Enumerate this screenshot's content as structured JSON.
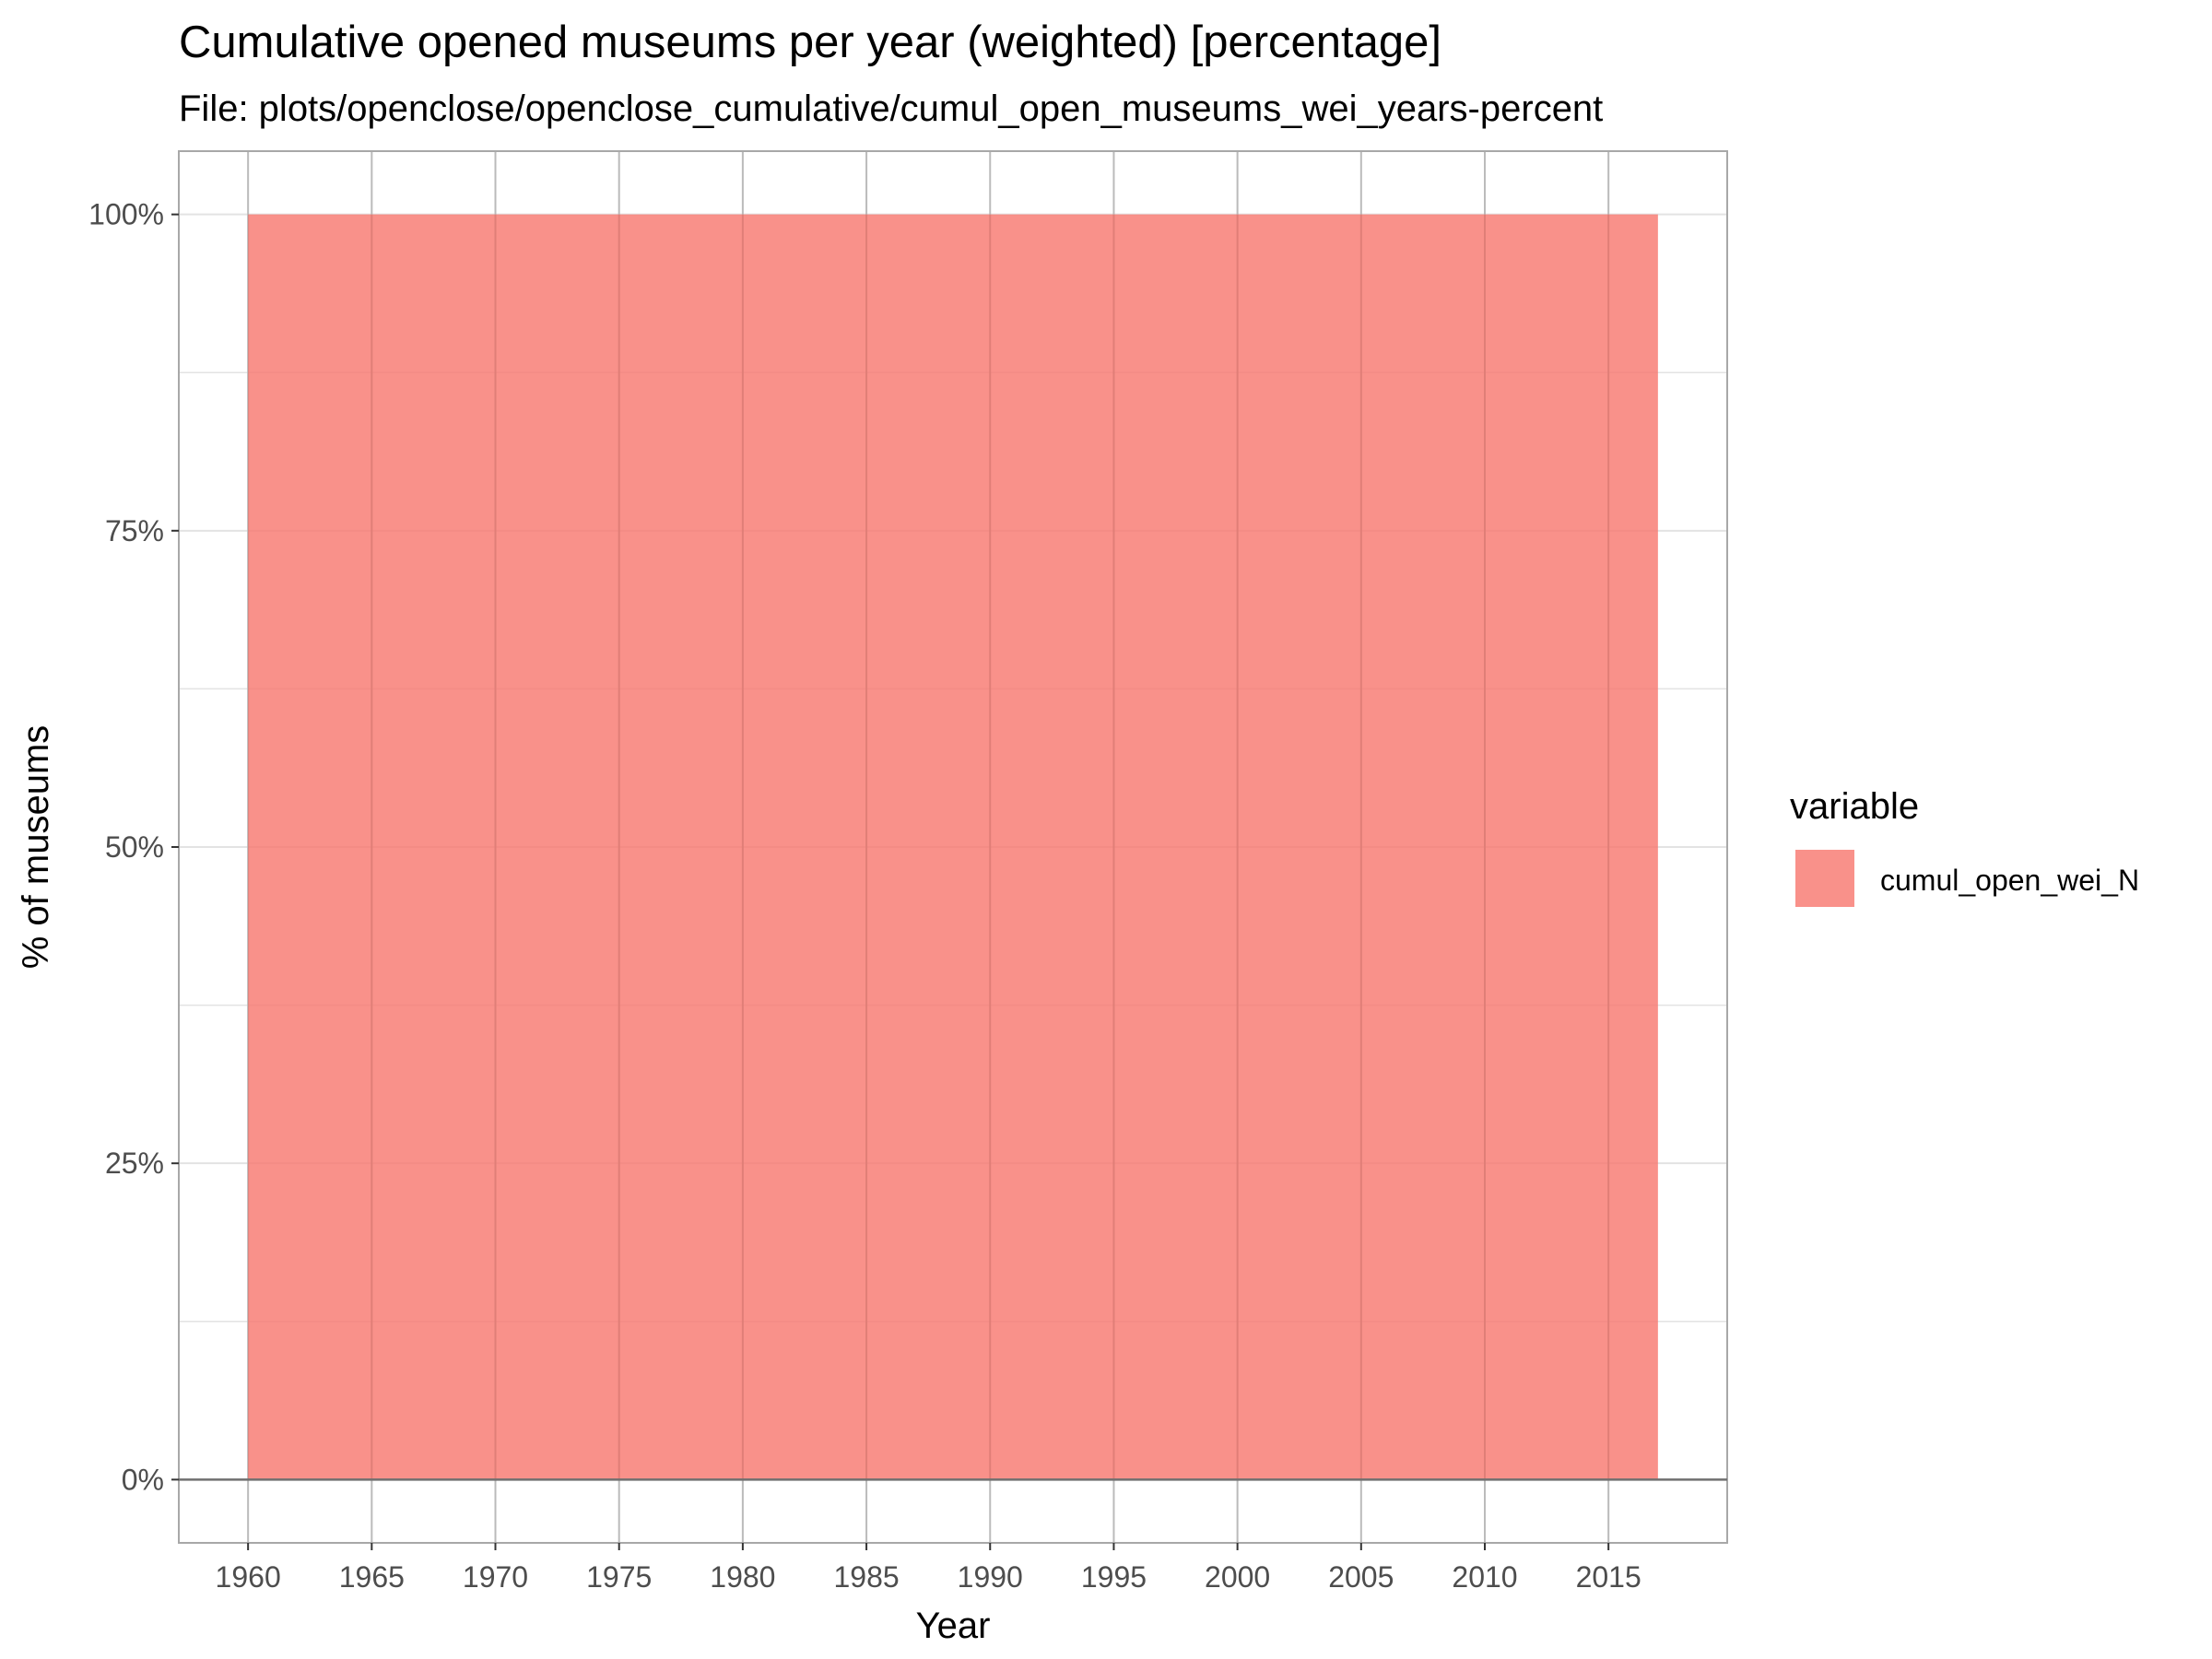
{
  "chart_data": {
    "type": "area",
    "title": "Cumulative opened museums per year (weighted) [percentage]",
    "subtitle": "File: plots/openclose/openclose_cumulative/cumul_open_museums_wei_years-percent",
    "xlabel": "Year",
    "ylabel": "% of museums",
    "x": [
      1960,
      2017
    ],
    "series": [
      {
        "name": "cumul_open_wei_N",
        "values": [
          100,
          100
        ],
        "color": "#f8766d"
      }
    ],
    "xlim": [
      1957.2,
      2019.8
    ],
    "ylim": [
      -5,
      105
    ],
    "xticks": [
      1960,
      1965,
      1970,
      1975,
      1980,
      1985,
      1990,
      1995,
      2000,
      2005,
      2010,
      2015
    ],
    "xtick_labels": [
      "1960",
      "1965",
      "1970",
      "1975",
      "1980",
      "1985",
      "1990",
      "1995",
      "2000",
      "2005",
      "2010",
      "2015"
    ],
    "yticks": [
      0,
      25,
      50,
      75,
      100
    ],
    "ytick_labels": [
      "0%",
      "25%",
      "50%",
      "75%",
      "100%"
    ],
    "grid": true,
    "legend": {
      "title": "variable",
      "position": "right"
    },
    "colors": {
      "grid": "#e3e3e3",
      "grid_major": "#c7c7c7",
      "panel_border": "#a8a8a8",
      "baseline": "#707070"
    }
  }
}
